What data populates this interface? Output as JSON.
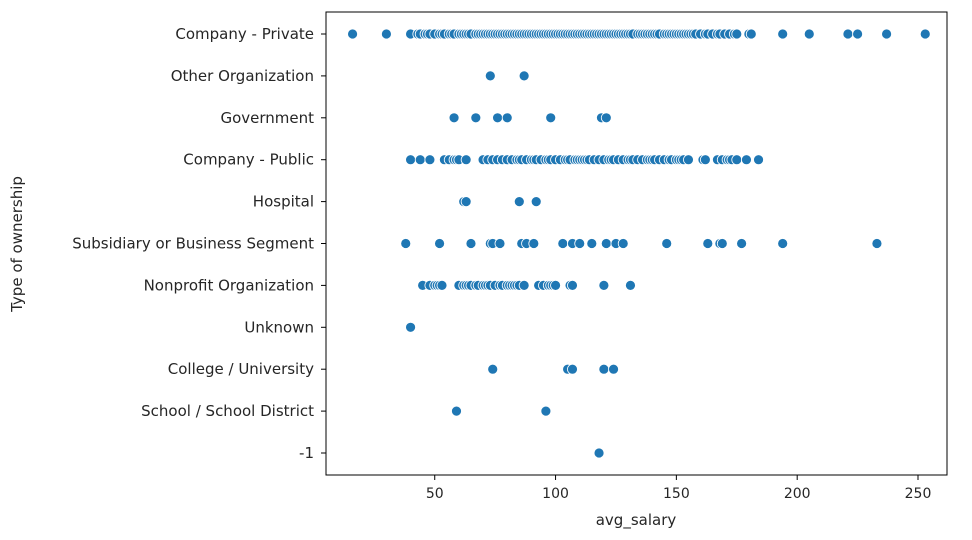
{
  "chart_data": {
    "type": "scatter",
    "title": "",
    "xlabel": "avg_salary",
    "ylabel": "Type of ownership",
    "xlim": [
      5,
      262
    ],
    "xticks": [
      50,
      100,
      150,
      200,
      250
    ],
    "categories": [
      "Company - Private",
      "Other Organization",
      "Government",
      "Company - Public",
      "Hospital",
      "Subsidiary or Business Segment",
      "Nonprofit Organization",
      "Unknown",
      "College / University",
      "School / School District",
      "-1"
    ],
    "grid": false,
    "legend": "none",
    "marker_color": "#1f77b4",
    "marker_edge": "#ffffff",
    "points": [
      {
        "category": "Company - Private",
        "x": [
          16,
          30,
          40,
          43,
          44,
          46,
          47,
          48,
          50,
          52,
          53,
          54,
          56,
          57,
          58,
          60,
          61,
          62,
          63,
          64,
          65,
          67,
          68,
          69,
          70,
          71,
          72,
          73,
          74,
          75,
          76,
          77,
          78,
          79,
          80,
          81,
          82,
          83,
          84,
          85,
          86,
          87,
          88,
          89,
          90,
          91,
          92,
          93,
          94,
          95,
          96,
          97,
          98,
          99,
          100,
          101,
          102,
          103,
          104,
          105,
          106,
          107,
          108,
          109,
          110,
          111,
          112,
          113,
          114,
          115,
          116,
          117,
          118,
          119,
          120,
          121,
          122,
          123,
          124,
          125,
          126,
          127,
          128,
          129,
          130,
          131,
          132,
          134,
          135,
          136,
          137,
          138,
          139,
          140,
          141,
          142,
          143,
          145,
          146,
          147,
          148,
          149,
          150,
          151,
          152,
          153,
          154,
          155,
          156,
          157,
          158,
          160,
          162,
          163,
          165,
          167,
          168,
          170,
          172,
          174,
          175,
          180,
          181,
          194,
          205,
          221,
          225,
          237,
          253
        ]
      },
      {
        "category": "Other Organization",
        "x": [
          73,
          87
        ]
      },
      {
        "category": "Government",
        "x": [
          58,
          67,
          76,
          80,
          98,
          119,
          121
        ]
      },
      {
        "category": "Company - Public",
        "x": [
          40,
          44,
          48,
          54,
          56,
          58,
          59,
          60,
          63,
          70,
          72,
          74,
          76,
          78,
          80,
          82,
          84,
          85,
          86,
          88,
          90,
          91,
          92,
          94,
          96,
          97,
          98,
          100,
          102,
          104,
          105,
          106,
          108,
          109,
          110,
          111,
          112,
          113,
          114,
          116,
          118,
          120,
          122,
          123,
          124,
          126,
          128,
          130,
          131,
          132,
          134,
          136,
          138,
          139,
          140,
          141,
          143,
          145,
          147,
          148,
          150,
          151,
          152,
          153,
          155,
          161,
          162,
          167,
          169,
          171,
          172,
          173,
          175,
          179,
          184
        ]
      },
      {
        "category": "Hospital",
        "x": [
          62,
          63,
          85,
          92
        ]
      },
      {
        "category": "Subsidiary or Business Segment",
        "x": [
          38,
          52,
          65,
          73,
          74,
          77,
          86,
          88,
          91,
          103,
          107,
          110,
          115,
          121,
          125,
          128,
          146,
          163,
          168,
          169,
          177,
          194,
          233
        ]
      },
      {
        "category": "Nonprofit Organization",
        "x": [
          45,
          48,
          50,
          51,
          52,
          53,
          60,
          62,
          63,
          64,
          65,
          67,
          68,
          70,
          71,
          72,
          73,
          75,
          77,
          78,
          80,
          81,
          82,
          83,
          84,
          85,
          87,
          93,
          95,
          97,
          98,
          99,
          100,
          106,
          107,
          120,
          131
        ]
      },
      {
        "category": "Unknown",
        "x": [
          40
        ]
      },
      {
        "category": "College / University",
        "x": [
          74,
          105,
          107,
          120,
          124
        ]
      },
      {
        "category": "School / School District",
        "x": [
          59,
          96
        ]
      },
      {
        "category": "-1",
        "x": [
          118
        ]
      }
    ]
  }
}
